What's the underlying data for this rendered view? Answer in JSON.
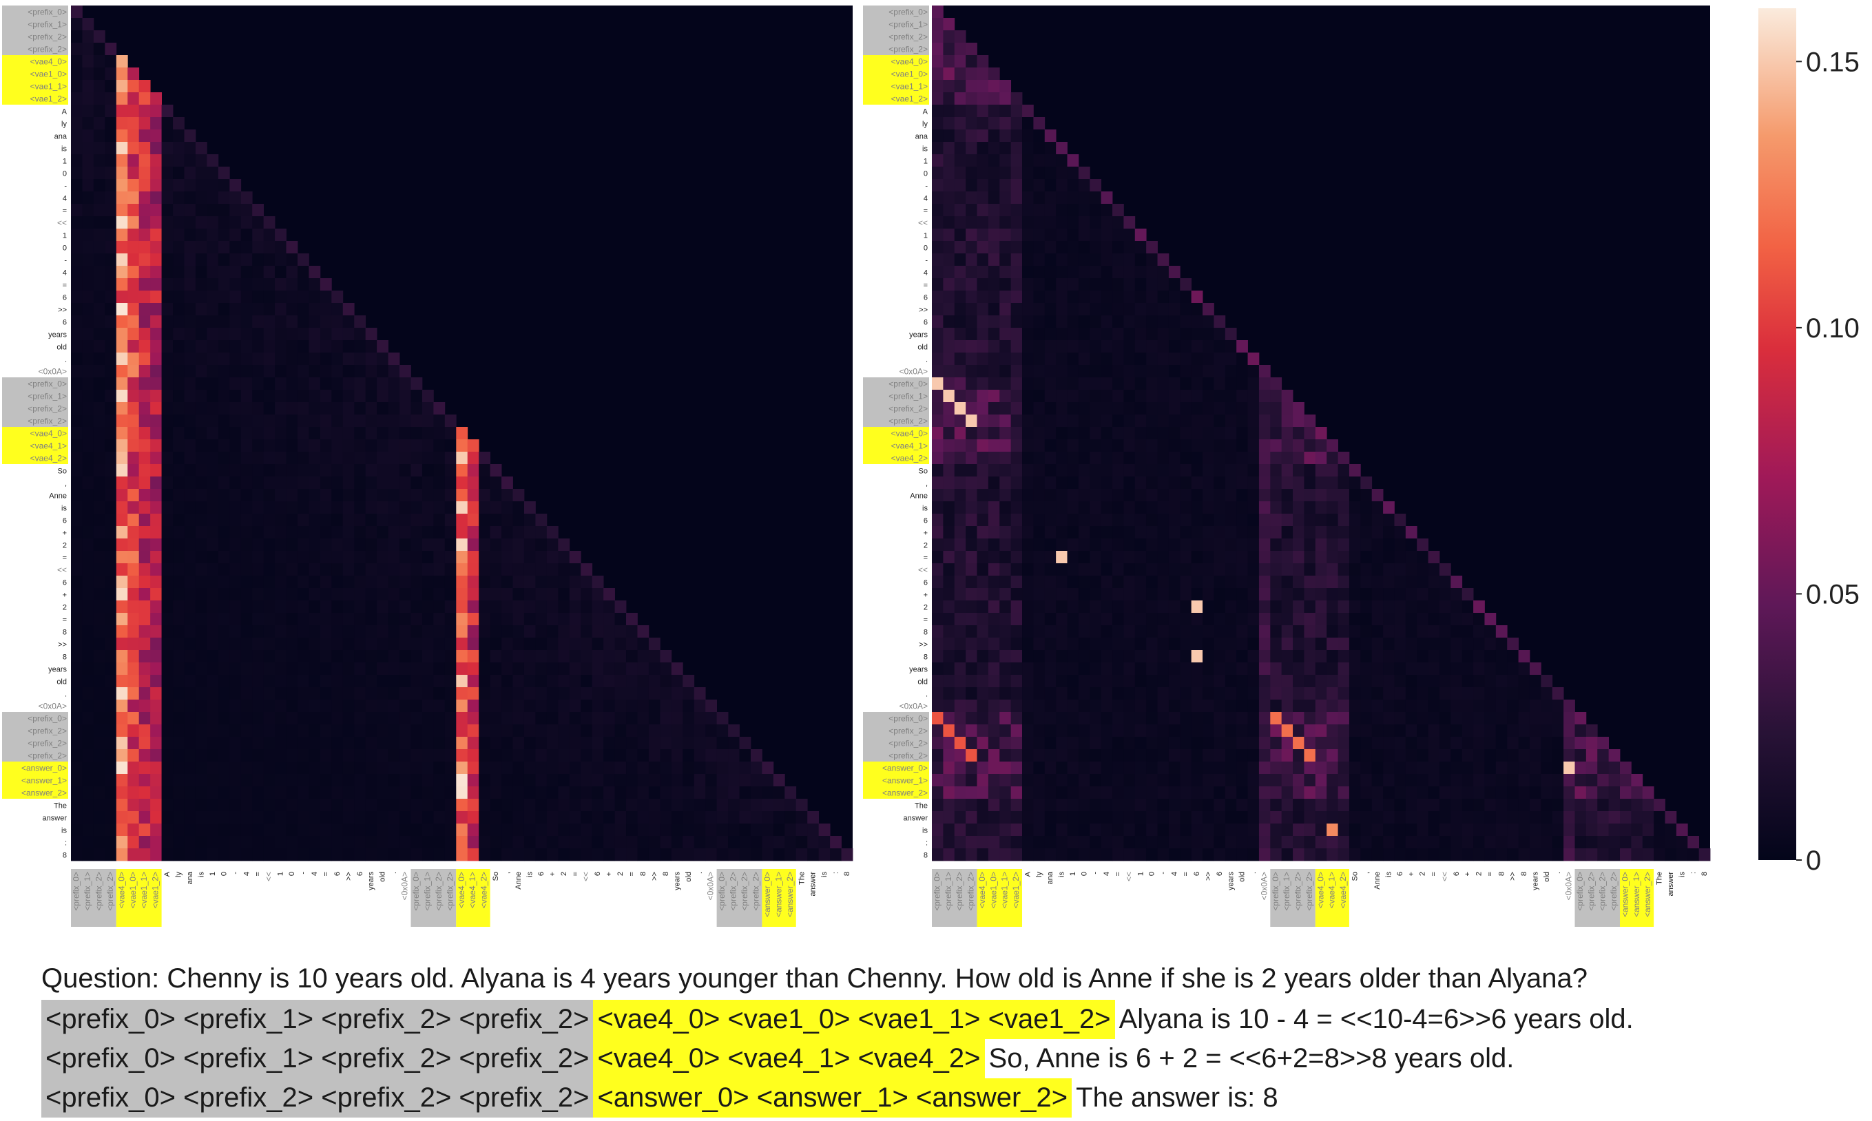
{
  "chart_data": {
    "type": "heatmap",
    "panels": [
      {
        "y_labels": [
          "<prefix_0>",
          "<prefix_1>",
          "<prefix_2>",
          "<prefix_2>",
          "<vae4_0>",
          "<vae1_0>",
          "<vae1_1>",
          "<vae1_2>",
          "A",
          "ly",
          "ana",
          "is",
          "1",
          "0",
          "-",
          "4",
          "=",
          "<<",
          "1",
          "0",
          "-",
          "4",
          "=",
          "6",
          ">>",
          "6",
          "years",
          "old",
          ".",
          "<0x0A>",
          "<prefix_0>",
          "<prefix_1>",
          "<prefix_2>",
          "<prefix_2>",
          "<vae4_0>",
          "<vae4_1>",
          "<vae4_2>",
          "So",
          ",",
          "Anne",
          "is",
          "6",
          "+",
          "2",
          "=",
          "<<",
          "6",
          "+",
          "2",
          "=",
          "8",
          ">>",
          "8",
          "years",
          "old",
          ".",
          "<0x0A>",
          "<prefix_0>",
          "<prefix_2>",
          "<prefix_2>",
          "<prefix_2>",
          "<answer_0>",
          "<answer_1>",
          "<answer_2>",
          "The",
          "answer",
          "is",
          ":",
          "8"
        ],
        "x_labels": [
          "<prefix_0>",
          "<prefix_1>",
          "<prefix_2>",
          "<prefix_2>",
          "<vae4_0>",
          "<vae1_0>",
          "<vae1_1>",
          "<vae1_2>",
          "A",
          "ly",
          "ana",
          "is",
          "1",
          "0",
          "-",
          "4",
          "=",
          "<<",
          "1",
          "0",
          "-",
          "4",
          "=",
          "6",
          ">>",
          "6",
          "years",
          "old",
          ".",
          "<0x0A>",
          "<prefix_0>",
          "<prefix_1>",
          "<prefix_2>",
          "<prefix_2>",
          "<vae4_0>",
          "<vae4_1>",
          "<vae4_2>",
          "So",
          ",",
          "Anne",
          "is",
          "6",
          "+",
          "2",
          "=",
          "<<",
          "6",
          "+",
          "2",
          "=",
          "8",
          ">>",
          "8",
          "years",
          "old",
          ".",
          "<0x0A>",
          "<prefix_0>",
          "<prefix_2>",
          "<prefix_2>",
          "<prefix_2>",
          "<answer_0>",
          "<answer_1>",
          "<answer_2>",
          "The",
          "answer",
          "is",
          ":",
          "8"
        ],
        "label_groups": [
          {
            "type": "gray",
            "start": 0,
            "end": 3
          },
          {
            "type": "yellow",
            "start": 4,
            "end": 7
          },
          {
            "type": "gray",
            "start": 30,
            "end": 33
          },
          {
            "type": "yellow",
            "start": 34,
            "end": 36
          },
          {
            "type": "gray",
            "start": 57,
            "end": 60
          },
          {
            "type": "yellow",
            "start": 61,
            "end": 63
          }
        ],
        "strong_columns": [
          {
            "index": 4,
            "value": 0.16
          },
          {
            "index": 5,
            "value": 0.13
          },
          {
            "index": 6,
            "value": 0.11
          },
          {
            "index": 7,
            "value": 0.1
          },
          {
            "index": 34,
            "value": 0.16
          },
          {
            "index": 35,
            "value": 0.11
          }
        ]
      },
      {
        "y_labels": [
          "<prefix_0>",
          "<prefix_1>",
          "<prefix_2>",
          "<prefix_2>",
          "<vae4_0>",
          "<vae1_0>",
          "<vae1_1>",
          "<vae1_2>",
          "A",
          "ly",
          "ana",
          "is",
          "1",
          "0",
          "-",
          "4",
          "=",
          "<<",
          "1",
          "0",
          "-",
          "4",
          "=",
          "6",
          ">>",
          "6",
          "years",
          "old",
          ".",
          "<0x0A>",
          "<prefix_0>",
          "<prefix_1>",
          "<prefix_2>",
          "<prefix_2>",
          "<vae4_0>",
          "<vae4_1>",
          "<vae4_2>",
          "So",
          ",",
          "Anne",
          "is",
          "6",
          "+",
          "2",
          "=",
          "<<",
          "6",
          "+",
          "2",
          "=",
          "8",
          ">>",
          "8",
          "years",
          "old",
          ".",
          "<0x0A>",
          "<prefix_0>",
          "<prefix_2>",
          "<prefix_2>",
          "<prefix_2>",
          "<answer_0>",
          "<answer_1>",
          "<answer_2>",
          "The",
          "answer",
          "is",
          ":",
          "8"
        ],
        "x_labels": [
          "<prefix_0>",
          "<prefix_1>",
          "<prefix_2>",
          "<prefix_2>",
          "<vae4_0>",
          "<vae1_0>",
          "<vae1_1>",
          "<vae1_2>",
          "A",
          "ly",
          "ana",
          "is",
          "1",
          "0",
          "-",
          "4",
          "=",
          "<<",
          "1",
          "0",
          "-",
          "4",
          "=",
          "6",
          ">>",
          "6",
          "years",
          "old",
          ".",
          "<0x0A>",
          "<prefix_0>",
          "<prefix_1>",
          "<prefix_2>",
          "<prefix_2>",
          "<vae4_0>",
          "<vae4_1>",
          "<vae4_2>",
          "So",
          ",",
          "Anne",
          "is",
          "6",
          "+",
          "2",
          "=",
          "<<",
          "6",
          "+",
          "2",
          "=",
          "8",
          ">>",
          "8",
          "years",
          "old",
          ".",
          "<0x0A>",
          "<prefix_0>",
          "<prefix_2>",
          "<prefix_2>",
          "<prefix_2>",
          "<answer_0>",
          "<answer_1>",
          "<answer_2>",
          "The",
          "answer",
          "is",
          ":",
          "8"
        ],
        "label_groups": [
          {
            "type": "gray",
            "start": 0,
            "end": 3
          },
          {
            "type": "yellow",
            "start": 4,
            "end": 7
          },
          {
            "type": "gray",
            "start": 30,
            "end": 33
          },
          {
            "type": "yellow",
            "start": 34,
            "end": 36
          },
          {
            "type": "gray",
            "start": 57,
            "end": 60
          },
          {
            "type": "yellow",
            "start": 61,
            "end": 63
          }
        ],
        "bright_cells": [
          {
            "row": 30,
            "col": 0,
            "value": 0.15
          },
          {
            "row": 31,
            "col": 1,
            "value": 0.15
          },
          {
            "row": 32,
            "col": 2,
            "value": 0.15
          },
          {
            "row": 33,
            "col": 3,
            "value": 0.15
          },
          {
            "row": 57,
            "col": 0,
            "value": 0.11
          },
          {
            "row": 58,
            "col": 1,
            "value": 0.11
          },
          {
            "row": 59,
            "col": 2,
            "value": 0.11
          },
          {
            "row": 60,
            "col": 3,
            "value": 0.11
          },
          {
            "row": 57,
            "col": 30,
            "value": 0.12
          },
          {
            "row": 58,
            "col": 31,
            "value": 0.12
          },
          {
            "row": 59,
            "col": 32,
            "value": 0.12
          },
          {
            "row": 60,
            "col": 33,
            "value": 0.12
          },
          {
            "row": 44,
            "col": 11,
            "value": 0.15
          },
          {
            "row": 48,
            "col": 23,
            "value": 0.15
          },
          {
            "row": 52,
            "col": 23,
            "value": 0.15
          },
          {
            "row": 61,
            "col": 56,
            "value": 0.15
          },
          {
            "row": 66,
            "col": 35,
            "value": 0.13
          }
        ]
      }
    ],
    "colorbar": {
      "colormap": "rocket",
      "range": [
        0,
        0.16
      ],
      "ticks": [
        "0",
        "0.05",
        "0.10",
        "0.15"
      ],
      "tick_values": [
        0,
        0.05,
        0.1,
        0.15
      ]
    }
  },
  "caption": {
    "question": "Question: Chenny is 10 years old. Alyana is 4 years younger than Chenny. How old is Anne if she is 2 years older than Alyana?",
    "lines": [
      {
        "prefix": "<prefix_0> <prefix_1> <prefix_2> <prefix_2>",
        "latent": "<vae4_0> <vae1_0> <vae1_1> <vae1_2>",
        "text": "Alyana is 10 - 4 = <<10-4=6>>6 years old."
      },
      {
        "prefix": "<prefix_0> <prefix_1> <prefix_2> <prefix_2>",
        "latent": "<vae4_0> <vae4_1> <vae4_2>",
        "text": "So, Anne is 6 + 2 = <<6+2=8>>8 years old."
      },
      {
        "prefix": "<prefix_0> <prefix_2> <prefix_2> <prefix_2>",
        "latent": "<answer_0> <answer_1> <answer_2>",
        "text": "The answer is: 8"
      }
    ]
  },
  "colors": {
    "gray_highlight": "#c0c0c0",
    "yellow_highlight": "#ffff1e"
  }
}
